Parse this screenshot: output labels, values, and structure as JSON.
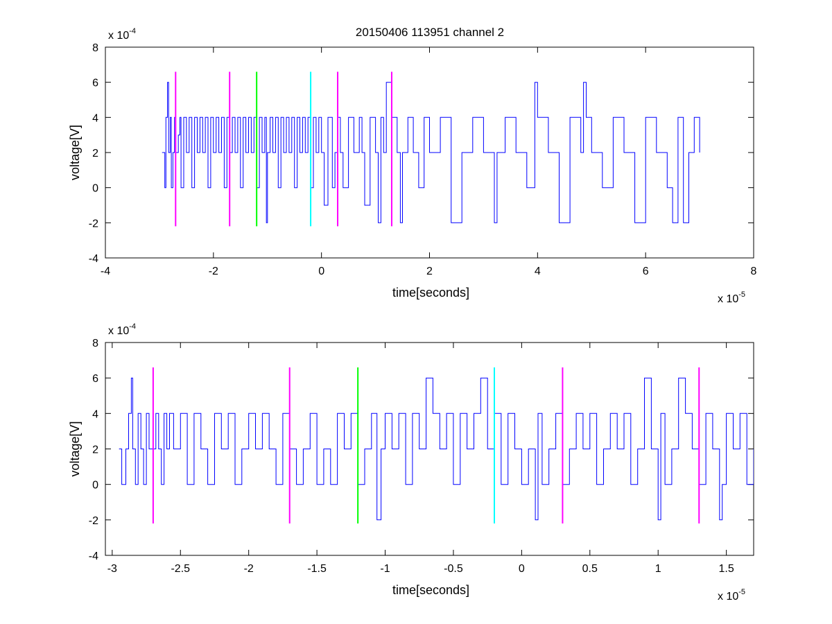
{
  "figure": {
    "title": "20150406 113951 channel 2"
  },
  "chart_data": [
    {
      "type": "line",
      "title": "20150406 113951 channel 2",
      "xlabel": "time[seconds]",
      "ylabel": "voltage[V]",
      "x_exponent_label": "x 10",
      "x_exponent": "-5",
      "y_exponent_label": "x 10",
      "y_exponent": "-4",
      "xlim": [
        -4,
        8
      ],
      "ylim": [
        -4,
        8
      ],
      "x_ticks": [
        -4,
        -2,
        0,
        2,
        4,
        6,
        8
      ],
      "x_tick_labels": [
        "-4",
        "-2",
        "0",
        "2",
        "4",
        "6",
        "8"
      ],
      "y_ticks": [
        -4,
        -2,
        0,
        2,
        4,
        6,
        8
      ],
      "y_tick_labels": [
        "-4",
        "-2",
        "0",
        "2",
        "4",
        "6",
        "8"
      ],
      "grid": false,
      "signal_color": "#0000ff",
      "series": [
        {
          "x": [
            -2.95,
            -2.9,
            -2.88,
            -2.85,
            -2.83,
            -2.8,
            -2.78,
            -2.75,
            -2.72,
            -2.7,
            -2.68,
            -2.65,
            -2.62,
            -2.6,
            -2.55,
            -2.5,
            -2.45,
            -2.4,
            -2.35,
            -2.3,
            -2.25,
            -2.2,
            -2.15,
            -2.1,
            -2.05,
            -2.0,
            -1.95,
            -1.9,
            -1.85,
            -1.8,
            -1.75,
            -1.7,
            -1.65,
            -1.6,
            -1.55,
            -1.5,
            -1.45,
            -1.4,
            -1.35,
            -1.3,
            -1.25,
            -1.2,
            -1.15,
            -1.1,
            -1.05,
            -1.02,
            -1.0,
            -0.95,
            -0.9,
            -0.85,
            -0.8,
            -0.75,
            -0.7,
            -0.65,
            -0.6,
            -0.55,
            -0.5,
            -0.45,
            -0.4,
            -0.35,
            -0.3,
            -0.25,
            -0.2,
            -0.15,
            -0.1,
            -0.05,
            0.0,
            0.05,
            0.12,
            0.2,
            0.25,
            0.3,
            0.35,
            0.4,
            0.5,
            0.6,
            0.7,
            0.75,
            0.8,
            0.9,
            1.0,
            1.05,
            1.1,
            1.15,
            1.2,
            1.3,
            1.4,
            1.46,
            1.5,
            1.6,
            1.7,
            1.8,
            1.9,
            2.0,
            2.2,
            2.4,
            2.6,
            2.8,
            3.0,
            3.2,
            3.25,
            3.4,
            3.6,
            3.8,
            3.95,
            4.0,
            4.2,
            4.4,
            4.6,
            4.8,
            4.85,
            4.9,
            5.0,
            5.2,
            5.4,
            5.6,
            5.8,
            6.0,
            6.2,
            6.4,
            6.5,
            6.6,
            6.7,
            6.8,
            6.9,
            7.0
          ],
          "y": [
            2,
            0,
            4,
            6,
            2,
            4,
            0,
            2,
            4,
            2,
            2,
            3,
            4,
            0,
            4,
            2,
            4,
            0,
            4,
            2,
            4,
            2,
            4,
            0,
            4,
            2,
            4,
            2,
            4,
            0,
            4,
            2,
            4,
            2,
            4,
            0,
            4,
            2,
            4,
            2,
            4,
            0,
            4,
            2,
            4,
            -2,
            2,
            4,
            2,
            4,
            0,
            4,
            2,
            4,
            2,
            4,
            0,
            4,
            2,
            4,
            2,
            4,
            0,
            4,
            2,
            4,
            2,
            -1,
            4,
            0,
            2,
            4,
            2,
            0,
            4,
            2,
            4,
            2,
            -1,
            4,
            2,
            -2,
            4,
            2,
            6,
            4,
            2,
            -2,
            2,
            4,
            2,
            0,
            4,
            2,
            4,
            -2,
            2,
            4,
            2,
            -2,
            2,
            4,
            2,
            0,
            6,
            4,
            2,
            -2,
            4,
            2,
            6,
            4,
            2,
            0,
            4,
            2,
            -2,
            4,
            2,
            0,
            -2,
            4,
            -2,
            2,
            4,
            2
          ]
        }
      ],
      "markers": [
        {
          "x": -2.7,
          "y0": -2.2,
          "y1": 6.6,
          "color": "#ff00ff"
        },
        {
          "x": -1.7,
          "y0": -2.2,
          "y1": 6.6,
          "color": "#ff00ff"
        },
        {
          "x": -1.2,
          "y0": -2.2,
          "y1": 6.6,
          "color": "#00ff00"
        },
        {
          "x": -0.2,
          "y0": -2.2,
          "y1": 6.6,
          "color": "#00ffff"
        },
        {
          "x": 0.3,
          "y0": -2.2,
          "y1": 6.6,
          "color": "#ff00ff"
        },
        {
          "x": 1.3,
          "y0": -2.2,
          "y1": 6.6,
          "color": "#ff00ff"
        }
      ]
    },
    {
      "type": "line",
      "title": "",
      "xlabel": "time[seconds]",
      "ylabel": "voltage[V]",
      "x_exponent_label": "x 10",
      "x_exponent": "-5",
      "y_exponent_label": "x 10",
      "y_exponent": "-4",
      "xlim": [
        -3.05,
        1.7
      ],
      "ylim": [
        -4,
        8
      ],
      "x_ticks": [
        -3,
        -2.5,
        -2,
        -1.5,
        -1,
        -0.5,
        0,
        0.5,
        1,
        1.5
      ],
      "x_tick_labels": [
        "-3",
        "-2.5",
        "-2",
        "-1.5",
        "-1",
        "-0.5",
        "0",
        "0.5",
        "1",
        "1.5"
      ],
      "y_ticks": [
        -4,
        -2,
        0,
        2,
        4,
        6,
        8
      ],
      "y_tick_labels": [
        "-4",
        "-2",
        "0",
        "2",
        "4",
        "6",
        "8"
      ],
      "grid": false,
      "signal_color": "#0000ff",
      "series": [
        {
          "x": [
            -2.95,
            -2.93,
            -2.9,
            -2.88,
            -2.86,
            -2.85,
            -2.83,
            -2.81,
            -2.79,
            -2.77,
            -2.75,
            -2.73,
            -2.7,
            -2.68,
            -2.66,
            -2.64,
            -2.62,
            -2.6,
            -2.58,
            -2.55,
            -2.5,
            -2.45,
            -2.4,
            -2.35,
            -2.3,
            -2.25,
            -2.2,
            -2.15,
            -2.1,
            -2.05,
            -2.0,
            -1.95,
            -1.9,
            -1.85,
            -1.8,
            -1.75,
            -1.7,
            -1.65,
            -1.6,
            -1.55,
            -1.5,
            -1.45,
            -1.4,
            -1.35,
            -1.3,
            -1.25,
            -1.2,
            -1.15,
            -1.1,
            -1.06,
            -1.03,
            -1.0,
            -0.95,
            -0.9,
            -0.85,
            -0.8,
            -0.75,
            -0.7,
            -0.65,
            -0.6,
            -0.55,
            -0.5,
            -0.45,
            -0.4,
            -0.35,
            -0.3,
            -0.25,
            -0.2,
            -0.15,
            -0.1,
            -0.05,
            0.0,
            0.05,
            0.1,
            0.12,
            0.15,
            0.2,
            0.25,
            0.3,
            0.35,
            0.4,
            0.45,
            0.5,
            0.55,
            0.6,
            0.65,
            0.7,
            0.75,
            0.8,
            0.85,
            0.9,
            0.95,
            1.0,
            1.02,
            1.05,
            1.1,
            1.15,
            1.2,
            1.25,
            1.3,
            1.35,
            1.4,
            1.45,
            1.47,
            1.5,
            1.55,
            1.6,
            1.65,
            1.7
          ],
          "y": [
            2,
            0,
            2,
            4,
            6,
            2,
            0,
            4,
            2,
            0,
            4,
            2,
            2,
            4,
            2,
            0,
            4,
            2,
            4,
            2,
            4,
            0,
            4,
            2,
            0,
            4,
            2,
            4,
            0,
            2,
            4,
            2,
            4,
            2,
            0,
            4,
            2,
            0,
            2,
            4,
            0,
            2,
            0,
            4,
            2,
            4,
            0,
            2,
            4,
            -2,
            2,
            4,
            2,
            4,
            0,
            4,
            2,
            6,
            4,
            2,
            4,
            0,
            4,
            2,
            4,
            6,
            2,
            4,
            0,
            4,
            2,
            0,
            2,
            -2,
            4,
            0,
            2,
            4,
            0,
            2,
            4,
            2,
            4,
            0,
            2,
            4,
            2,
            4,
            0,
            2,
            6,
            2,
            -2,
            4,
            0,
            2,
            6,
            4,
            2,
            0,
            4,
            2,
            -2,
            0,
            4,
            2,
            4,
            0,
            2
          ],
          "note": ""
        }
      ],
      "markers": [
        {
          "x": -2.7,
          "y0": -2.2,
          "y1": 6.6,
          "color": "#ff00ff"
        },
        {
          "x": -1.7,
          "y0": -2.2,
          "y1": 6.6,
          "color": "#ff00ff"
        },
        {
          "x": -1.2,
          "y0": -2.2,
          "y1": 6.6,
          "color": "#00ff00"
        },
        {
          "x": -0.2,
          "y0": -2.2,
          "y1": 6.6,
          "color": "#00ffff"
        },
        {
          "x": 0.3,
          "y0": -2.2,
          "y1": 6.6,
          "color": "#ff00ff"
        },
        {
          "x": 1.3,
          "y0": -2.2,
          "y1": 6.6,
          "color": "#ff00ff"
        }
      ]
    }
  ]
}
